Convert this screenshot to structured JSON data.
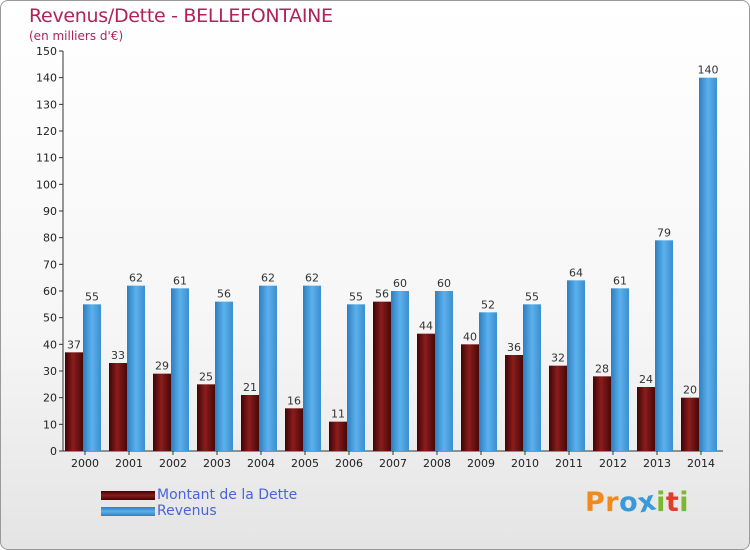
{
  "title": "Revenus/Dette - BELLEFONTAINE",
  "subtitle": "(en milliers d'€)",
  "colors": {
    "debt": "#6b0f0f",
    "revenue": "#4aa0e2",
    "title": "#b0225c",
    "legend_text": "#4a63d8"
  },
  "chart_data": {
    "type": "bar",
    "title": "Revenus/Dette - BELLEFONTAINE",
    "ylabel": "(en milliers d'€)",
    "xlabel": "",
    "ylim": [
      0,
      150
    ],
    "yticks": [
      0,
      10,
      20,
      30,
      40,
      50,
      60,
      70,
      80,
      90,
      100,
      110,
      120,
      130,
      140,
      150
    ],
    "categories": [
      "2000",
      "2001",
      "2002",
      "2003",
      "2004",
      "2005",
      "2006",
      "2007",
      "2008",
      "2009",
      "2010",
      "2011",
      "2012",
      "2013",
      "2014"
    ],
    "series": [
      {
        "name": "Montant de la Dette",
        "values": [
          37,
          33,
          29,
          25,
          21,
          16,
          11,
          56,
          44,
          40,
          36,
          32,
          28,
          24,
          20
        ]
      },
      {
        "name": "Revenus",
        "values": [
          55,
          62,
          61,
          56,
          62,
          62,
          55,
          60,
          60,
          52,
          55,
          64,
          61,
          79,
          140
        ]
      }
    ],
    "legend_position": "bottom-left"
  },
  "legend": {
    "items": [
      {
        "label": "Montant de la Dette"
      },
      {
        "label": "Revenus"
      }
    ]
  },
  "logo": {
    "text": "Proxiti",
    "letters": [
      "P",
      "r",
      "o",
      "x",
      "i",
      "t",
      "i"
    ],
    "letter_colors": [
      "#f08a1c",
      "#f08a1c",
      "#3a9ad9",
      "#3a9ad9",
      "#7cb82f",
      "#e23c2c",
      "#7cb82f"
    ]
  }
}
